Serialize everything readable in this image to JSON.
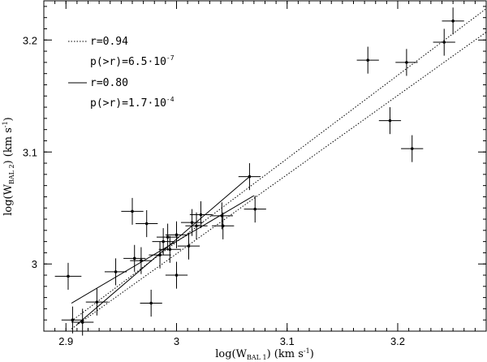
{
  "chart_data": {
    "type": "scatter",
    "xlabel": {
      "prefix": "log(W",
      "sub": "BAL 1",
      "suffix": ")  (km s",
      "sup": "-1",
      "end": ")"
    },
    "ylabel": {
      "prefix": "log(W",
      "sub": "BAL 2",
      "suffix": ")  (km s",
      "sup": "-1",
      "end": ")"
    },
    "xlim": [
      2.88,
      3.28
    ],
    "ylim": [
      2.94,
      3.235
    ],
    "x_ticks": [
      2.9,
      3.0,
      3.1,
      3.2
    ],
    "x_tick_labels": [
      "2.9",
      "3",
      "3.1",
      "3.2"
    ],
    "y_ticks": [
      3.0,
      3.1,
      3.2
    ],
    "y_tick_labels": [
      "3",
      "3.1",
      "3.2"
    ],
    "x_minor_step": 0.01,
    "y_minor_step": 0.01,
    "grid": false,
    "legend_position": "top-left",
    "legend": [
      {
        "style": "dotted",
        "label": "r=0.94",
        "stat": {
          "prefix": "p(>r)=6.5·10",
          "exp": "-7"
        }
      },
      {
        "style": "solid",
        "label": "r=0.80",
        "stat": {
          "prefix": "p(>r)=1.7·10",
          "exp": "-4"
        }
      }
    ],
    "points": [
      {
        "x": 2.902,
        "y": 2.989,
        "xerr": 0.012,
        "yerr": 0.012
      },
      {
        "x": 2.906,
        "y": 2.95,
        "xerr": 0.01,
        "yerr": 0.012
      },
      {
        "x": 2.915,
        "y": 2.948,
        "xerr": 0.01,
        "yerr": 0.012
      },
      {
        "x": 2.928,
        "y": 2.966,
        "xerr": 0.01,
        "yerr": 0.012
      },
      {
        "x": 2.945,
        "y": 2.993,
        "xerr": 0.01,
        "yerr": 0.012
      },
      {
        "x": 2.96,
        "y": 3.047,
        "xerr": 0.01,
        "yerr": 0.012
      },
      {
        "x": 2.962,
        "y": 3.005,
        "xerr": 0.01,
        "yerr": 0.012
      },
      {
        "x": 2.968,
        "y": 3.003,
        "xerr": 0.01,
        "yerr": 0.012
      },
      {
        "x": 2.973,
        "y": 3.036,
        "xerr": 0.01,
        "yerr": 0.012
      },
      {
        "x": 2.977,
        "y": 2.965,
        "xerr": 0.01,
        "yerr": 0.012
      },
      {
        "x": 2.985,
        "y": 3.008,
        "xerr": 0.01,
        "yerr": 0.012
      },
      {
        "x": 2.988,
        "y": 3.02,
        "xerr": 0.01,
        "yerr": 0.012
      },
      {
        "x": 2.992,
        "y": 3.024,
        "xerr": 0.01,
        "yerr": 0.012
      },
      {
        "x": 2.994,
        "y": 3.013,
        "xerr": 0.01,
        "yerr": 0.012
      },
      {
        "x": 3.0,
        "y": 2.99,
        "xerr": 0.01,
        "yerr": 0.012
      },
      {
        "x": 3.0,
        "y": 3.026,
        "xerr": 0.01,
        "yerr": 0.012
      },
      {
        "x": 3.011,
        "y": 3.016,
        "xerr": 0.01,
        "yerr": 0.012
      },
      {
        "x": 3.014,
        "y": 3.037,
        "xerr": 0.01,
        "yerr": 0.012
      },
      {
        "x": 3.018,
        "y": 3.034,
        "xerr": 0.01,
        "yerr": 0.012
      },
      {
        "x": 3.022,
        "y": 3.044,
        "xerr": 0.01,
        "yerr": 0.012
      },
      {
        "x": 3.041,
        "y": 3.043,
        "xerr": 0.01,
        "yerr": 0.012
      },
      {
        "x": 3.042,
        "y": 3.034,
        "xerr": 0.01,
        "yerr": 0.012
      },
      {
        "x": 3.066,
        "y": 3.078,
        "xerr": 0.01,
        "yerr": 0.012
      },
      {
        "x": 3.071,
        "y": 3.049,
        "xerr": 0.01,
        "yerr": 0.012
      },
      {
        "x": 3.173,
        "y": 3.182,
        "xerr": 0.01,
        "yerr": 0.012
      },
      {
        "x": 3.193,
        "y": 3.128,
        "xerr": 0.01,
        "yerr": 0.012
      },
      {
        "x": 3.208,
        "y": 3.18,
        "xerr": 0.01,
        "yerr": 0.012
      },
      {
        "x": 3.213,
        "y": 3.103,
        "xerr": 0.01,
        "yerr": 0.012
      },
      {
        "x": 3.242,
        "y": 3.198,
        "xerr": 0.01,
        "yerr": 0.012
      },
      {
        "x": 3.25,
        "y": 3.217,
        "xerr": 0.01,
        "yerr": 0.012
      }
    ],
    "fit_lines": [
      {
        "style": "dotted",
        "x": [
          2.905,
          3.28
        ],
        "y": [
          2.942,
          3.207
        ]
      },
      {
        "style": "dotted",
        "x": [
          2.905,
          3.28
        ],
        "y": [
          2.949,
          3.228
        ]
      },
      {
        "style": "solid",
        "x": [
          2.905,
          3.07
        ],
        "y": [
          2.965,
          3.061
        ]
      },
      {
        "style": "solid",
        "x": [
          2.91,
          3.066
        ],
        "y": [
          2.946,
          3.078
        ]
      }
    ]
  }
}
